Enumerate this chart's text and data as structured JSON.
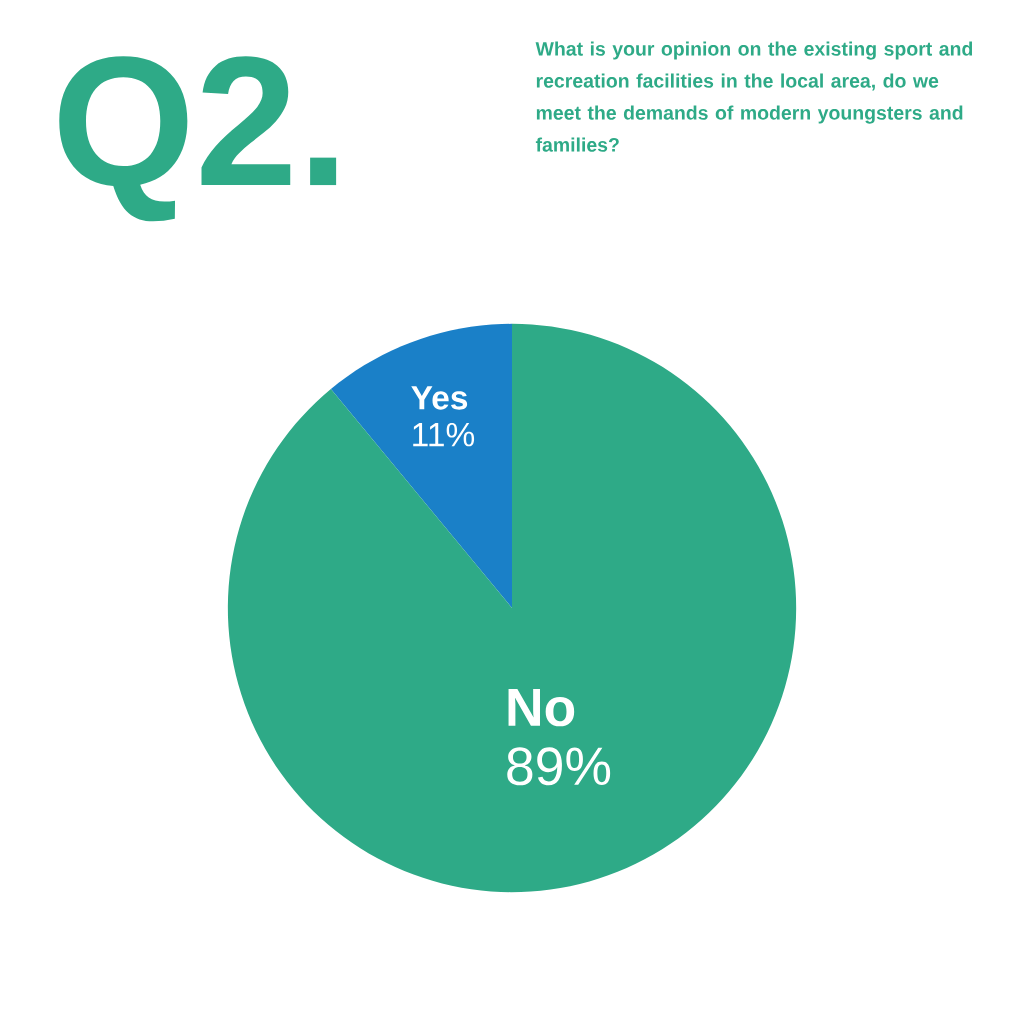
{
  "chart_data": {
    "type": "pie",
    "title": "Q2.",
    "subtitle": "What is your opinion on the existing sport and recreation facilities in the local area, do we meet the demands of modern youngsters and families?",
    "categories": [
      "Yes",
      "No"
    ],
    "values": [
      11,
      89
    ],
    "colors": [
      "#1a80c8",
      "#2eaa87"
    ],
    "value_labels": [
      "11%",
      "89%"
    ]
  }
}
